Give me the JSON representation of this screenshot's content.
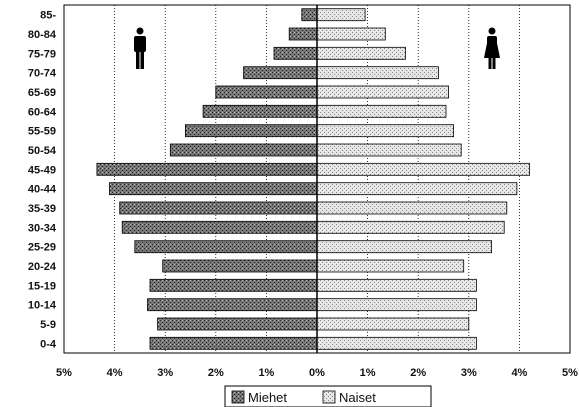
{
  "chart_data": {
    "type": "bar",
    "orientation": "horizontal",
    "categories": [
      "0-4",
      "5-9",
      "10-14",
      "15-19",
      "20-24",
      "25-29",
      "30-34",
      "35-39",
      "40-44",
      "45-49",
      "50-54",
      "55-59",
      "60-64",
      "65-69",
      "70-74",
      "75-79",
      "80-84",
      "85-"
    ],
    "series": [
      {
        "name": "Miehet",
        "side": "left",
        "color": "#555555",
        "values": [
          3.3,
          3.15,
          3.35,
          3.3,
          3.05,
          3.6,
          3.85,
          3.9,
          4.1,
          4.35,
          2.9,
          2.6,
          2.25,
          2.0,
          1.45,
          0.85,
          0.55,
          0.3
        ]
      },
      {
        "name": "Naiset",
        "side": "right",
        "color": "#d9d9d9",
        "values": [
          3.15,
          3.0,
          3.15,
          3.15,
          2.9,
          3.45,
          3.7,
          3.75,
          3.95,
          4.2,
          2.85,
          2.7,
          2.55,
          2.6,
          2.4,
          1.75,
          1.35,
          0.95
        ]
      }
    ],
    "x_ticks": [
      "5%",
      "4%",
      "3%",
      "2%",
      "1%",
      "0%",
      "1%",
      "2%",
      "3%",
      "4%",
      "5%"
    ],
    "xlim": [
      -5,
      5
    ],
    "grid": "vertical dotted",
    "legend": "bottom-center",
    "icons": [
      "male-figure-icon",
      "female-figure-icon"
    ]
  }
}
